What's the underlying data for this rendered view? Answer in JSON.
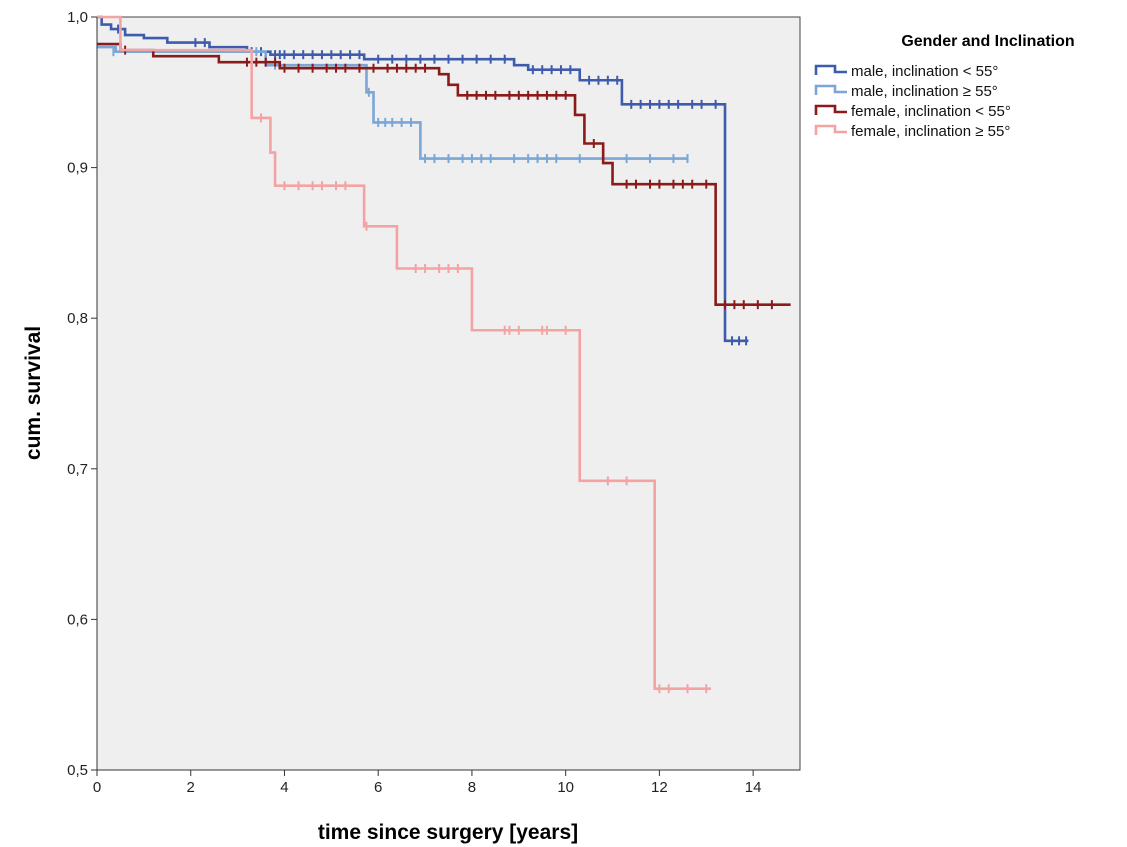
{
  "chart_data": {
    "type": "line",
    "subtype": "kaplan-meier step plot with censor marks",
    "xlabel": "time since surgery [years]",
    "ylabel": "cum. survival",
    "xlim": [
      0,
      15
    ],
    "ylim": [
      0.5,
      1.0
    ],
    "x_ticks": [
      0,
      2,
      4,
      6,
      8,
      10,
      12,
      14
    ],
    "x_tick_labels": [
      "0",
      "2",
      "4",
      "6",
      "8",
      "10",
      "12",
      "14"
    ],
    "y_ticks": [
      0.5,
      0.6,
      0.7,
      0.8,
      0.9,
      1.0
    ],
    "y_tick_labels": [
      "0,5",
      "0,6",
      "0,7",
      "0,8",
      "0,9",
      "1,0"
    ],
    "background": "#efefef",
    "grid": false,
    "legend": {
      "title": "Gender and Inclination",
      "placement": "outside-top-right"
    },
    "series": [
      {
        "name": "male, inclination < 55°",
        "color": "#3e5bad",
        "steps": [
          [
            0,
            1.0
          ],
          [
            0.1,
            0.995
          ],
          [
            0.3,
            0.992
          ],
          [
            0.6,
            0.988
          ],
          [
            1.0,
            0.986
          ],
          [
            1.5,
            0.983
          ],
          [
            2.4,
            0.98
          ],
          [
            3.2,
            0.977
          ],
          [
            3.7,
            0.975
          ],
          [
            5.7,
            0.972
          ],
          [
            8.9,
            0.968
          ],
          [
            9.2,
            0.965
          ],
          [
            10.3,
            0.958
          ],
          [
            11.2,
            0.942
          ],
          [
            13.4,
            0.785
          ],
          [
            13.9,
            0.785
          ]
        ],
        "censored": [
          [
            0.45,
            0.992
          ],
          [
            2.1,
            0.983
          ],
          [
            2.3,
            0.983
          ],
          [
            3.3,
            0.977
          ],
          [
            3.5,
            0.977
          ],
          [
            3.8,
            0.975
          ],
          [
            3.9,
            0.975
          ],
          [
            4.0,
            0.975
          ],
          [
            4.2,
            0.975
          ],
          [
            4.4,
            0.975
          ],
          [
            4.6,
            0.975
          ],
          [
            4.8,
            0.975
          ],
          [
            5.0,
            0.975
          ],
          [
            5.2,
            0.975
          ],
          [
            5.4,
            0.975
          ],
          [
            5.6,
            0.975
          ],
          [
            6.0,
            0.972
          ],
          [
            6.3,
            0.972
          ],
          [
            6.6,
            0.972
          ],
          [
            6.9,
            0.972
          ],
          [
            7.2,
            0.972
          ],
          [
            7.5,
            0.972
          ],
          [
            7.8,
            0.972
          ],
          [
            8.1,
            0.972
          ],
          [
            8.4,
            0.972
          ],
          [
            8.7,
            0.972
          ],
          [
            9.3,
            0.965
          ],
          [
            9.5,
            0.965
          ],
          [
            9.7,
            0.965
          ],
          [
            9.9,
            0.965
          ],
          [
            10.1,
            0.965
          ],
          [
            10.5,
            0.958
          ],
          [
            10.7,
            0.958
          ],
          [
            10.9,
            0.958
          ],
          [
            11.1,
            0.958
          ],
          [
            11.4,
            0.942
          ],
          [
            11.6,
            0.942
          ],
          [
            11.8,
            0.942
          ],
          [
            12.0,
            0.942
          ],
          [
            12.2,
            0.942
          ],
          [
            12.4,
            0.942
          ],
          [
            12.7,
            0.942
          ],
          [
            12.9,
            0.942
          ],
          [
            13.2,
            0.942
          ],
          [
            13.55,
            0.785
          ],
          [
            13.7,
            0.785
          ],
          [
            13.85,
            0.785
          ]
        ]
      },
      {
        "name": "male, inclination ≥ 55°",
        "color": "#7ba6d6",
        "steps": [
          [
            0,
            0.98
          ],
          [
            0.4,
            0.977
          ],
          [
            3.2,
            0.977
          ],
          [
            3.6,
            0.968
          ],
          [
            5.75,
            0.95
          ],
          [
            5.9,
            0.93
          ],
          [
            6.9,
            0.906
          ],
          [
            12.6,
            0.906
          ]
        ],
        "censored": [
          [
            0.35,
            0.977
          ],
          [
            3.4,
            0.977
          ],
          [
            3.8,
            0.968
          ],
          [
            5.8,
            0.95
          ],
          [
            6.0,
            0.93
          ],
          [
            6.15,
            0.93
          ],
          [
            6.3,
            0.93
          ],
          [
            6.5,
            0.93
          ],
          [
            6.7,
            0.93
          ],
          [
            7.0,
            0.906
          ],
          [
            7.2,
            0.906
          ],
          [
            7.5,
            0.906
          ],
          [
            7.8,
            0.906
          ],
          [
            8.0,
            0.906
          ],
          [
            8.2,
            0.906
          ],
          [
            8.4,
            0.906
          ],
          [
            8.9,
            0.906
          ],
          [
            9.2,
            0.906
          ],
          [
            9.4,
            0.906
          ],
          [
            9.6,
            0.906
          ],
          [
            9.8,
            0.906
          ],
          [
            10.3,
            0.906
          ],
          [
            10.8,
            0.906
          ],
          [
            11.3,
            0.906
          ],
          [
            11.8,
            0.906
          ],
          [
            12.3,
            0.906
          ],
          [
            12.6,
            0.906
          ]
        ]
      },
      {
        "name": "female, inclination < 55°",
        "color": "#8b1a1a",
        "steps": [
          [
            0,
            0.982
          ],
          [
            0.5,
            0.978
          ],
          [
            1.2,
            0.974
          ],
          [
            2.6,
            0.97
          ],
          [
            3.9,
            0.966
          ],
          [
            7.3,
            0.962
          ],
          [
            7.5,
            0.955
          ],
          [
            7.7,
            0.948
          ],
          [
            10.2,
            0.935
          ],
          [
            10.4,
            0.916
          ],
          [
            10.8,
            0.903
          ],
          [
            11.0,
            0.889
          ],
          [
            13.2,
            0.809
          ],
          [
            14.8,
            0.809
          ]
        ],
        "censored": [
          [
            0.6,
            0.978
          ],
          [
            3.2,
            0.97
          ],
          [
            3.4,
            0.97
          ],
          [
            3.6,
            0.97
          ],
          [
            3.8,
            0.97
          ],
          [
            4.0,
            0.966
          ],
          [
            4.3,
            0.966
          ],
          [
            4.6,
            0.966
          ],
          [
            4.9,
            0.966
          ],
          [
            5.1,
            0.966
          ],
          [
            5.3,
            0.966
          ],
          [
            5.6,
            0.966
          ],
          [
            5.9,
            0.966
          ],
          [
            6.2,
            0.966
          ],
          [
            6.4,
            0.966
          ],
          [
            6.6,
            0.966
          ],
          [
            6.8,
            0.966
          ],
          [
            7.0,
            0.966
          ],
          [
            7.9,
            0.948
          ],
          [
            8.1,
            0.948
          ],
          [
            8.3,
            0.948
          ],
          [
            8.5,
            0.948
          ],
          [
            8.8,
            0.948
          ],
          [
            9.0,
            0.948
          ],
          [
            9.2,
            0.948
          ],
          [
            9.4,
            0.948
          ],
          [
            9.6,
            0.948
          ],
          [
            9.8,
            0.948
          ],
          [
            10.0,
            0.948
          ],
          [
            10.6,
            0.916
          ],
          [
            11.3,
            0.889
          ],
          [
            11.5,
            0.889
          ],
          [
            11.8,
            0.889
          ],
          [
            12.0,
            0.889
          ],
          [
            12.3,
            0.889
          ],
          [
            12.5,
            0.889
          ],
          [
            12.7,
            0.889
          ],
          [
            13.0,
            0.889
          ],
          [
            13.4,
            0.809
          ],
          [
            13.6,
            0.809
          ],
          [
            13.8,
            0.809
          ],
          [
            14.1,
            0.809
          ],
          [
            14.4,
            0.809
          ]
        ]
      },
      {
        "name": "female, inclination  ≥ 55°",
        "color": "#f4a3a3",
        "steps": [
          [
            0,
            1.0
          ],
          [
            0.5,
            0.978
          ],
          [
            3.3,
            0.933
          ],
          [
            3.7,
            0.91
          ],
          [
            3.8,
            0.888
          ],
          [
            5.7,
            0.861
          ],
          [
            6.4,
            0.833
          ],
          [
            8.0,
            0.792
          ],
          [
            10.3,
            0.692
          ],
          [
            11.9,
            0.554
          ],
          [
            13.1,
            0.554
          ]
        ],
        "censored": [
          [
            3.5,
            0.933
          ],
          [
            4.0,
            0.888
          ],
          [
            4.3,
            0.888
          ],
          [
            4.6,
            0.888
          ],
          [
            4.8,
            0.888
          ],
          [
            5.1,
            0.888
          ],
          [
            5.3,
            0.888
          ],
          [
            5.75,
            0.861
          ],
          [
            6.8,
            0.833
          ],
          [
            7.0,
            0.833
          ],
          [
            7.3,
            0.833
          ],
          [
            7.5,
            0.833
          ],
          [
            7.7,
            0.833
          ],
          [
            8.7,
            0.792
          ],
          [
            8.8,
            0.792
          ],
          [
            9.0,
            0.792
          ],
          [
            9.5,
            0.792
          ],
          [
            9.6,
            0.792
          ],
          [
            10.0,
            0.792
          ],
          [
            10.9,
            0.692
          ],
          [
            11.3,
            0.692
          ],
          [
            12.0,
            0.554
          ],
          [
            12.2,
            0.554
          ],
          [
            12.6,
            0.554
          ],
          [
            13.0,
            0.554
          ]
        ]
      }
    ]
  }
}
